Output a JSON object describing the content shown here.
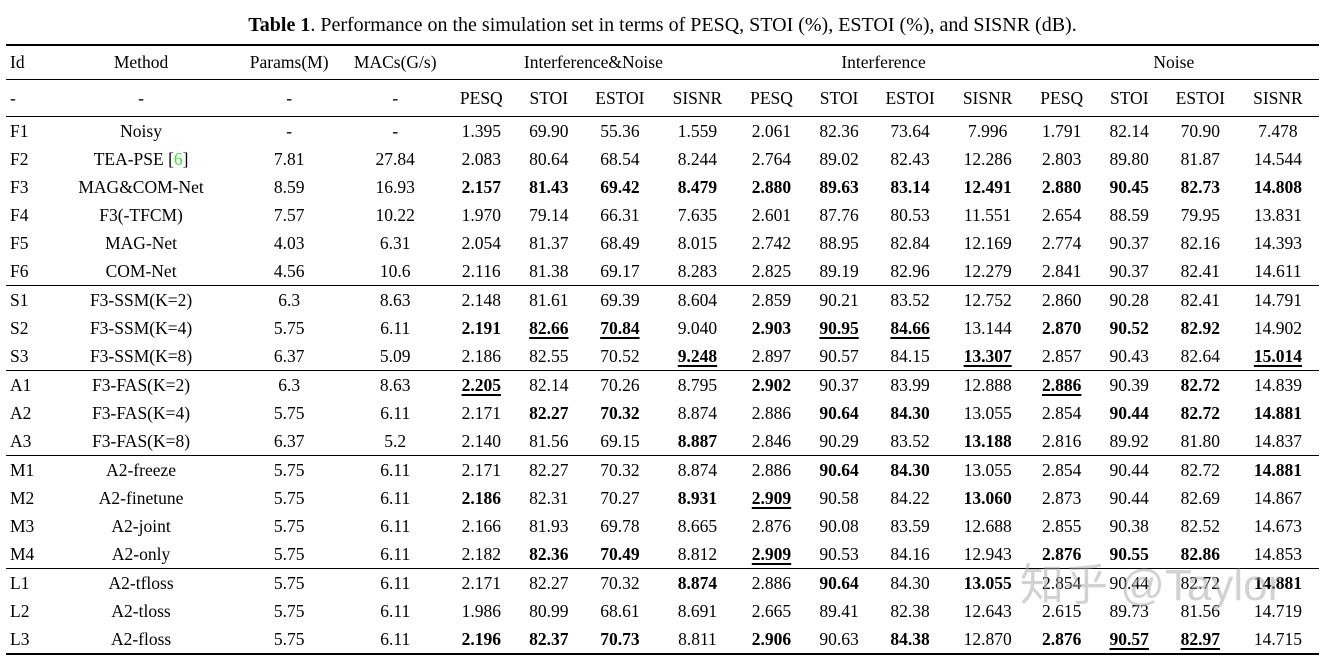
{
  "caption": {
    "label": "Table 1",
    "rest": ". Performance on the simulation set in terms of PESQ, STOI (%), ESTOI (%), and SISNR (dB)."
  },
  "accent": {
    "citation_color": "#3be13b"
  },
  "watermark": {
    "text": "知乎 @Taylor",
    "color": "#a6a6a6"
  },
  "table": {
    "col_headers": [
      "Id",
      "Method",
      "Params(M)",
      "MACs(G/s)"
    ],
    "group_headers": [
      "Interference&Noise",
      "Interference",
      "Noise"
    ],
    "metric_headers": [
      "PESQ",
      "STOI",
      "ESTOI",
      "SISNR"
    ],
    "subheader_dashes": [
      "-",
      "-",
      "-",
      "-"
    ],
    "sections": [
      {
        "rows": [
          {
            "id": "F1",
            "method": "Noisy",
            "params": "-",
            "macs": "-",
            "values": [
              "1.395",
              "69.90",
              "55.36",
              "1.559",
              "2.061",
              "82.36",
              "73.64",
              "7.996",
              "1.791",
              "82.14",
              "70.90",
              "7.478"
            ],
            "styles": null
          },
          {
            "id": "F2",
            "method": {
              "prefix": "TEA-PSE [",
              "cite": "6",
              "suffix": "]"
            },
            "params": "7.81",
            "macs": "27.84",
            "values": [
              "2.083",
              "80.64",
              "68.54",
              "8.244",
              "2.764",
              "89.02",
              "82.43",
              "12.286",
              "2.803",
              "89.80",
              "81.87",
              "14.544"
            ],
            "styles": null
          },
          {
            "id": "F3",
            "method": "MAG&COM-Net",
            "params": "8.59",
            "macs": "16.93",
            "values": [
              "2.157",
              "81.43",
              "69.42",
              "8.479",
              "2.880",
              "89.63",
              "83.14",
              "12.491",
              "2.880",
              "90.45",
              "82.73",
              "14.808"
            ],
            "styles": [
              "b",
              "b",
              "b",
              "b",
              "b",
              "b",
              "b",
              "b",
              "b",
              "b",
              "b",
              "b"
            ]
          },
          {
            "id": "F4",
            "method": "F3(-TFCM)",
            "params": "7.57",
            "macs": "10.22",
            "values": [
              "1.970",
              "79.14",
              "66.31",
              "7.635",
              "2.601",
              "87.76",
              "80.53",
              "11.551",
              "2.654",
              "88.59",
              "79.95",
              "13.831"
            ],
            "styles": null
          },
          {
            "id": "F5",
            "method": "MAG-Net",
            "params": "4.03",
            "macs": "6.31",
            "values": [
              "2.054",
              "81.37",
              "68.49",
              "8.015",
              "2.742",
              "88.95",
              "82.84",
              "12.169",
              "2.774",
              "90.37",
              "82.16",
              "14.393"
            ],
            "styles": null
          },
          {
            "id": "F6",
            "method": "COM-Net",
            "params": "4.56",
            "macs": "10.6",
            "values": [
              "2.116",
              "81.38",
              "69.17",
              "8.283",
              "2.825",
              "89.19",
              "82.96",
              "12.279",
              "2.841",
              "90.37",
              "82.41",
              "14.611"
            ],
            "styles": null
          }
        ]
      },
      {
        "rows": [
          {
            "id": "S1",
            "method": "F3-SSM(K=2)",
            "params": "6.3",
            "macs": "8.63",
            "values": [
              "2.148",
              "81.61",
              "69.39",
              "8.604",
              "2.859",
              "90.21",
              "83.52",
              "12.752",
              "2.860",
              "90.28",
              "82.41",
              "14.791"
            ],
            "styles": null
          },
          {
            "id": "S2",
            "method": "F3-SSM(K=4)",
            "params": "5.75",
            "macs": "6.11",
            "values": [
              "2.191",
              "82.66",
              "70.84",
              "9.040",
              "2.903",
              "90.95",
              "84.66",
              "13.144",
              "2.870",
              "90.52",
              "82.92",
              "14.902"
            ],
            "styles": [
              "b",
              "bu",
              "bu",
              "",
              "b",
              "bu",
              "bu",
              "",
              "b",
              "b",
              "b",
              ""
            ]
          },
          {
            "id": "S3",
            "method": "F3-SSM(K=8)",
            "params": "6.37",
            "macs": "5.09",
            "values": [
              "2.186",
              "82.55",
              "70.52",
              "9.248",
              "2.897",
              "90.57",
              "84.15",
              "13.307",
              "2.857",
              "90.43",
              "82.64",
              "15.014"
            ],
            "styles": [
              "",
              "",
              "",
              "bu",
              "",
              "",
              "",
              "bu",
              "",
              "",
              "",
              "bu"
            ]
          }
        ]
      },
      {
        "rows": [
          {
            "id": "A1",
            "method": "F3-FAS(K=2)",
            "params": "6.3",
            "macs": "8.63",
            "values": [
              "2.205",
              "82.14",
              "70.26",
              "8.795",
              "2.902",
              "90.37",
              "83.99",
              "12.888",
              "2.886",
              "90.39",
              "82.72",
              "14.839"
            ],
            "styles": [
              "bu",
              "",
              "",
              "",
              "b",
              "",
              "",
              "",
              "bu",
              "",
              "b",
              ""
            ]
          },
          {
            "id": "A2",
            "method": "F3-FAS(K=4)",
            "params": "5.75",
            "macs": "6.11",
            "values": [
              "2.171",
              "82.27",
              "70.32",
              "8.874",
              "2.886",
              "90.64",
              "84.30",
              "13.055",
              "2.854",
              "90.44",
              "82.72",
              "14.881"
            ],
            "styles": [
              "",
              "b",
              "b",
              "",
              "",
              "b",
              "b",
              "",
              "",
              "b",
              "b",
              "b"
            ]
          },
          {
            "id": "A3",
            "method": "F3-FAS(K=8)",
            "params": "6.37",
            "macs": "5.2",
            "values": [
              "2.140",
              "81.56",
              "69.15",
              "8.887",
              "2.846",
              "90.29",
              "83.52",
              "13.188",
              "2.816",
              "89.92",
              "81.80",
              "14.837"
            ],
            "styles": [
              "",
              "",
              "",
              "b",
              "",
              "",
              "",
              "b",
              "",
              "",
              "",
              ""
            ]
          }
        ]
      },
      {
        "rows": [
          {
            "id": "M1",
            "method": "A2-freeze",
            "params": "5.75",
            "macs": "6.11",
            "values": [
              "2.171",
              "82.27",
              "70.32",
              "8.874",
              "2.886",
              "90.64",
              "84.30",
              "13.055",
              "2.854",
              "90.44",
              "82.72",
              "14.881"
            ],
            "styles": [
              "",
              "",
              "",
              "",
              "",
              "b",
              "b",
              "",
              "",
              "",
              "",
              "b"
            ]
          },
          {
            "id": "M2",
            "method": "A2-finetune",
            "params": "5.75",
            "macs": "6.11",
            "values": [
              "2.186",
              "82.31",
              "70.27",
              "8.931",
              "2.909",
              "90.58",
              "84.22",
              "13.060",
              "2.873",
              "90.44",
              "82.69",
              "14.867"
            ],
            "styles": [
              "b",
              "",
              "",
              "b",
              "bu",
              "",
              "",
              "b",
              "",
              "",
              "",
              ""
            ]
          },
          {
            "id": "M3",
            "method": "A2-joint",
            "params": "5.75",
            "macs": "6.11",
            "values": [
              "2.166",
              "81.93",
              "69.78",
              "8.665",
              "2.876",
              "90.08",
              "83.59",
              "12.688",
              "2.855",
              "90.38",
              "82.52",
              "14.673"
            ],
            "styles": null
          },
          {
            "id": "M4",
            "method": "A2-only",
            "params": "5.75",
            "macs": "6.11",
            "values": [
              "2.182",
              "82.36",
              "70.49",
              "8.812",
              "2.909",
              "90.53",
              "84.16",
              "12.943",
              "2.876",
              "90.55",
              "82.86",
              "14.853"
            ],
            "styles": [
              "",
              "b",
              "b",
              "",
              "bu",
              "",
              "",
              "",
              "b",
              "b",
              "b",
              ""
            ]
          }
        ]
      },
      {
        "rows": [
          {
            "id": "L1",
            "method": "A2-tfloss",
            "params": "5.75",
            "macs": "6.11",
            "values": [
              "2.171",
              "82.27",
              "70.32",
              "8.874",
              "2.886",
              "90.64",
              "84.30",
              "13.055",
              "2.854",
              "90.44",
              "82.72",
              "14.881"
            ],
            "styles": [
              "",
              "",
              "",
              "b",
              "",
              "b",
              "",
              "b",
              "",
              "",
              "",
              "b"
            ]
          },
          {
            "id": "L2",
            "method": "A2-tloss",
            "params": "5.75",
            "macs": "6.11",
            "values": [
              "1.986",
              "80.99",
              "68.61",
              "8.691",
              "2.665",
              "89.41",
              "82.38",
              "12.643",
              "2.615",
              "89.73",
              "81.56",
              "14.719"
            ],
            "styles": null
          },
          {
            "id": "L3",
            "method": "A2-floss",
            "params": "5.75",
            "macs": "6.11",
            "values": [
              "2.196",
              "82.37",
              "70.73",
              "8.811",
              "2.906",
              "90.63",
              "84.38",
              "12.870",
              "2.876",
              "90.57",
              "82.97",
              "14.715"
            ],
            "styles": [
              "b",
              "b",
              "b",
              "",
              "b",
              "",
              "b",
              "",
              "b",
              "bu",
              "bu",
              ""
            ]
          }
        ]
      }
    ]
  }
}
